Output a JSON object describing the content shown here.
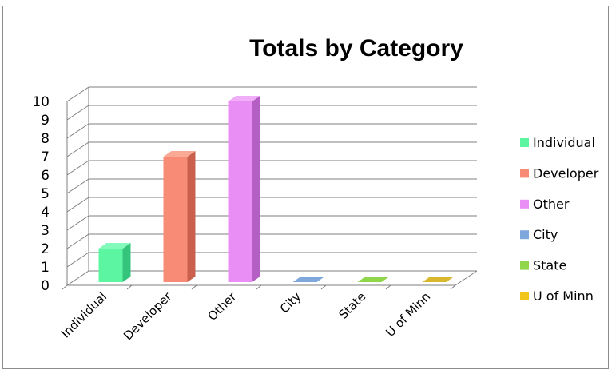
{
  "chart_data": {
    "type": "bar",
    "title": "Totals by Category",
    "xlabel": "",
    "ylabel": "",
    "categories": [
      "Individual",
      "Developer",
      "Other",
      "City",
      "State",
      "U of Minn"
    ],
    "values": [
      2,
      7,
      10,
      0,
      0,
      0
    ],
    "ylim": [
      0,
      10
    ],
    "yticks": [
      0,
      1,
      2,
      3,
      4,
      5,
      6,
      7,
      8,
      9,
      10
    ],
    "grid": true,
    "legend": "right",
    "colors": {
      "front": [
        "#5cf6a3",
        "#f78b75",
        "#e88ef5",
        "#7ea7dc",
        "#8fd64a",
        "#d9b82e"
      ],
      "side": [
        "#35c47c",
        "#c95f4c",
        "#b35fc4",
        "#5a7fb8",
        "#66a82b",
        "#a88a17"
      ],
      "top": [
        "#83f9bb",
        "#faa995",
        "#f0adf8",
        "#9fc0e8",
        "#aee66e",
        "#e8cd55"
      ]
    },
    "legend_colors": [
      "#5cf6a3",
      "#f78b75",
      "#e88ef5",
      "#7ea7dc",
      "#8fd64a",
      "#f2c51c"
    ]
  }
}
